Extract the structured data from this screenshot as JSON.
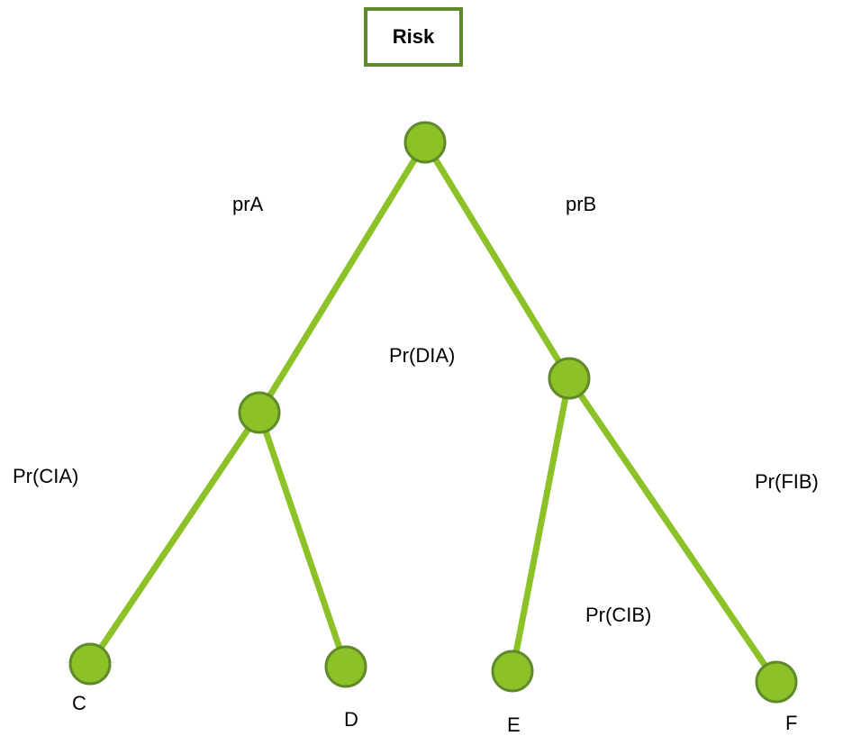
{
  "title": "Risk",
  "colors": {
    "edge": "#8dc128",
    "node_fill": "#8dc128",
    "node_stroke": "#5e8a2a",
    "title_border": "#5e8a2a"
  },
  "edge_labels": {
    "root_to_a": "prA",
    "root_to_b": "prB",
    "a_to_c": "Pr(CIA)",
    "a_to_d": "Pr(DIA)",
    "b_to_e": "Pr(CIB)",
    "b_to_f": "Pr(FIB)"
  },
  "leaf_labels": {
    "c": "C",
    "d": "D",
    "e": "E",
    "f": "F"
  }
}
